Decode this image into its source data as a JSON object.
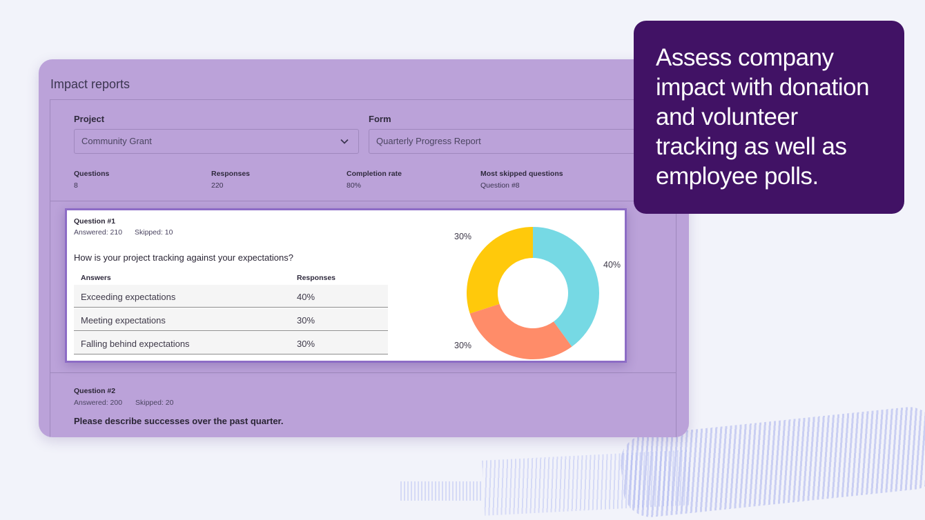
{
  "page": {
    "title": "Impact reports"
  },
  "filters": {
    "project_label": "Project",
    "project_value": "Community Grant",
    "form_label": "Form",
    "form_value": "Quarterly Progress Report"
  },
  "stats": [
    {
      "label": "Questions",
      "value": "8"
    },
    {
      "label": "Responses",
      "value": "220"
    },
    {
      "label": "Completion rate",
      "value": "80%"
    },
    {
      "label": "Most skipped questions",
      "value": "Question #8"
    }
  ],
  "question1": {
    "title": "Question #1",
    "answered": "Answered: 210",
    "skipped": "Skipped: 10",
    "text": "How is your project tracking against your expectations?",
    "col_answers": "Answers",
    "col_responses": "Responses",
    "rows": [
      {
        "answer": "Exceeding expectations",
        "response": "40%"
      },
      {
        "answer": "Meeting expectations",
        "response": "30%"
      },
      {
        "answer": "Falling behind expectations",
        "response": "30%"
      }
    ]
  },
  "question2": {
    "title": "Question #2",
    "answered": "Answered: 200",
    "skipped": "Skipped: 20",
    "text": "Please describe successes over the past quarter."
  },
  "chart_data": {
    "type": "pie",
    "variant": "donut",
    "categories": [
      "Exceeding expectations",
      "Meeting expectations",
      "Falling behind expectations"
    ],
    "values": [
      40,
      30,
      30
    ],
    "labels": [
      "40%",
      "30%",
      "30%"
    ],
    "colors": [
      "#76d9e4",
      "#ff8c69",
      "#ffc90b"
    ],
    "legend": "none"
  },
  "callout": {
    "text": "Assess company impact with donation and volunteer tracking as well as employee polls."
  },
  "colors": {
    "panel": "#bba2d9",
    "callout": "#411265",
    "card_border": "#8d6cc6",
    "background": "#f2f3fa"
  }
}
